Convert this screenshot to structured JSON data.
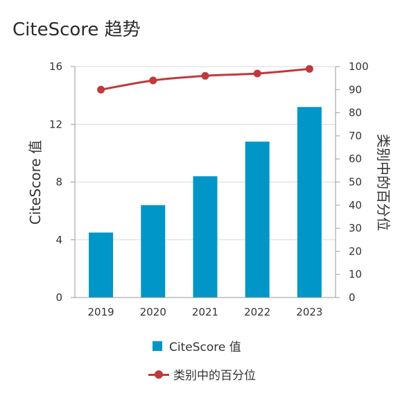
{
  "title": "CiteScore 趋势",
  "colors": {
    "bar": "#0096c7",
    "line": "#c0393b",
    "grid": "#d9d9d9",
    "axis": "#9a9a9a"
  },
  "chart_data": {
    "type": "bar",
    "categories": [
      "2019",
      "2020",
      "2021",
      "2022",
      "2023"
    ],
    "series": [
      {
        "name": "CiteScore 值",
        "type": "bar",
        "axis": "left",
        "values": [
          4.5,
          6.4,
          8.4,
          10.8,
          13.2
        ]
      },
      {
        "name": "类别中的百分位",
        "type": "line",
        "axis": "right",
        "values": [
          90,
          94,
          96,
          97,
          99
        ]
      }
    ],
    "y_left": {
      "label": "CiteScore 值",
      "range": [
        0,
        16
      ],
      "ticks": [
        "0",
        "4",
        "8",
        "12",
        "16"
      ]
    },
    "y_right": {
      "label": "类别中的百分位",
      "range": [
        0,
        100
      ],
      "ticks": [
        "0",
        "10",
        "20",
        "30",
        "40",
        "50",
        "60",
        "70",
        "80",
        "90",
        "100"
      ]
    },
    "grid": true,
    "legend_position": "bottom"
  },
  "legend": {
    "bar_label": "CiteScore 值",
    "line_label": "类别中的百分位"
  }
}
